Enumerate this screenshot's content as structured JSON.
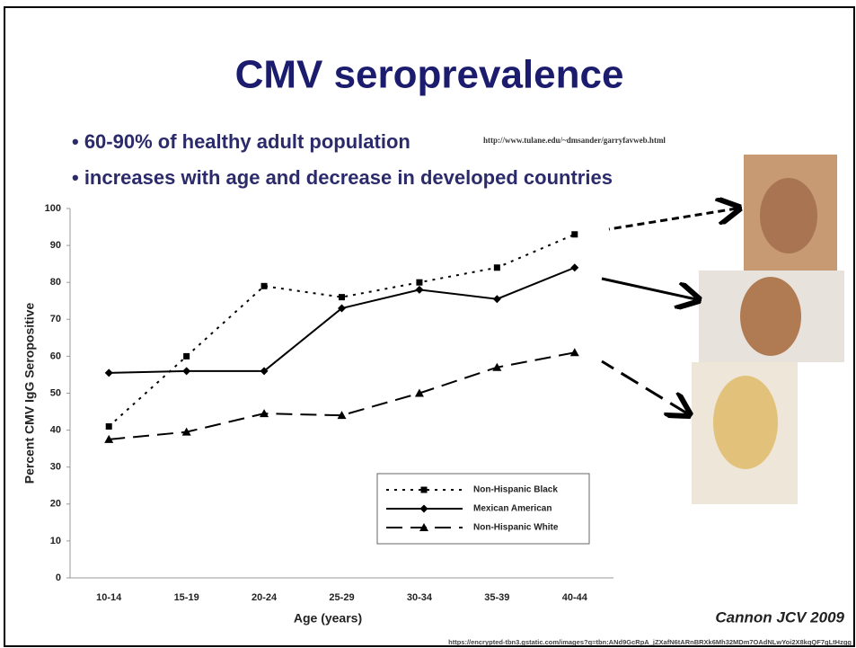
{
  "slide": {
    "title": "CMV seroprevalence",
    "bullets": [
      "• 60-90% of healthy adult population",
      "• increases with age and decrease in developed countries"
    ],
    "link": "http://www.tulane.edu/~dmsander/garryfavweb.html",
    "citation": "Cannon JCV 2009",
    "source": "https://encrypted-tbn3.gstatic.com/images?q=tbn:ANd9GcRpA_jZXafN6tARnBRXk6Mh32MDm7OAdNLwYoi2X8kqQF7gLtHzgg"
  },
  "chart_data": {
    "type": "line",
    "xlabel": "Age (years)",
    "ylabel": "Percent CMV IgG Seropositive",
    "categories": [
      "10-14",
      "15-19",
      "20-24",
      "25-29",
      "30-34",
      "35-39",
      "40-44"
    ],
    "series": [
      {
        "name": "Non-Hispanic Black",
        "color": "#000000",
        "dash": "dotted",
        "marker": "square",
        "values": [
          41,
          60,
          79,
          76,
          80,
          84,
          93
        ]
      },
      {
        "name": "Mexican American",
        "color": "#000000",
        "dash": "solid",
        "marker": "diamond",
        "values": [
          55.5,
          56,
          56,
          73,
          78,
          75.5,
          84
        ]
      },
      {
        "name": "Non-Hispanic White",
        "color": "#000000",
        "dash": "dashed",
        "marker": "triangle",
        "values": [
          37.5,
          39.5,
          44.5,
          44,
          50,
          57,
          61
        ]
      }
    ],
    "ylim": [
      0,
      100
    ],
    "yticks": [
      0,
      10,
      20,
      30,
      40,
      50,
      60,
      70,
      80,
      90,
      100
    ],
    "grid": false
  }
}
